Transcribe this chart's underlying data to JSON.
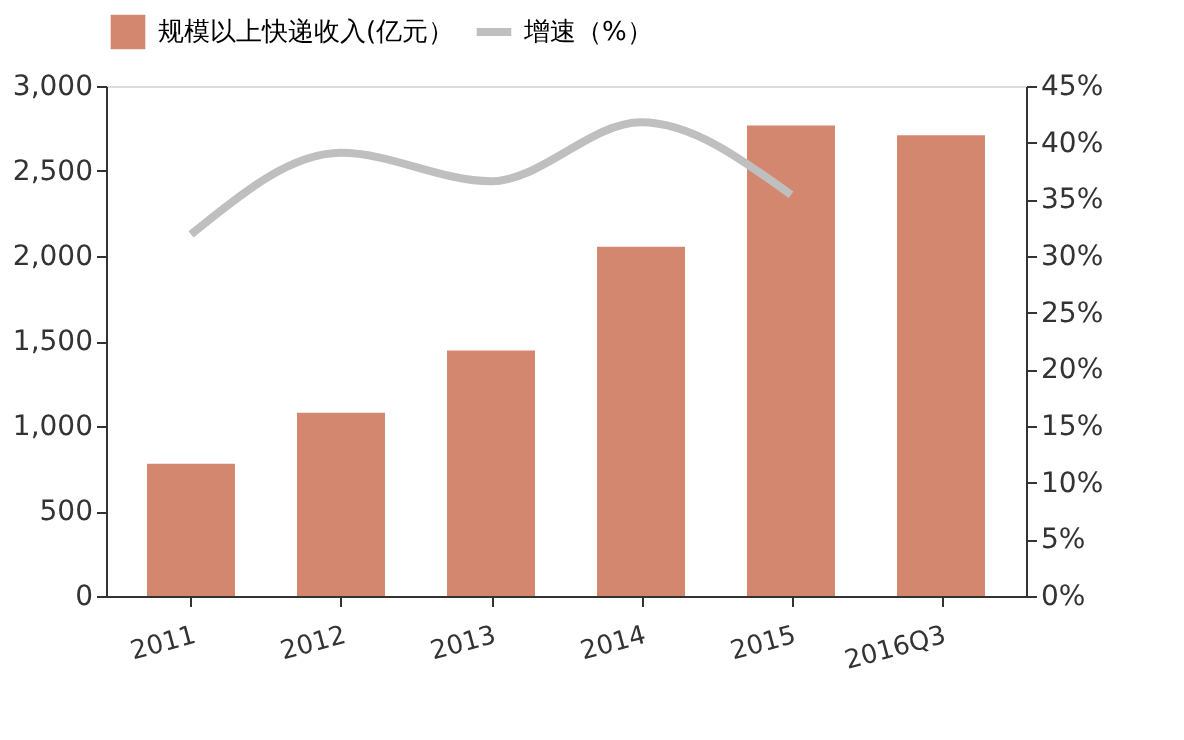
{
  "chart_data": {
    "type": "bar",
    "categories": [
      "2011",
      "2012",
      "2013",
      "2014",
      "2015",
      "2016Q3"
    ],
    "series": [
      {
        "name": "规模以上快递收入(亿元）",
        "color": "#d4876f",
        "values": [
          778,
          1078,
          1444,
          2055,
          2767,
          2711
        ]
      },
      {
        "name": "增速（%）",
        "type": "line",
        "axis": "y2",
        "color": "#bfbfbf",
        "values": [
          31.9,
          39.1,
          36.6,
          41.8,
          35.4,
          null
        ]
      }
    ],
    "ylim": [
      0,
      3000
    ],
    "yticks": [
      {
        "value": 0,
        "label": "0"
      },
      {
        "value": 500,
        "label": "500"
      },
      {
        "value": 1000,
        "label": "1,000"
      },
      {
        "value": 1500,
        "label": "1,500"
      },
      {
        "value": 2000,
        "label": "2,000"
      },
      {
        "value": 2500,
        "label": "2,500"
      },
      {
        "value": 3000,
        "label": "3,000"
      }
    ],
    "y2lim": [
      0,
      45
    ],
    "y2ticks": [
      {
        "value": 0,
        "label": "0%"
      },
      {
        "value": 5,
        "label": "5%"
      },
      {
        "value": 10,
        "label": "10%"
      },
      {
        "value": 15,
        "label": "15%"
      },
      {
        "value": 20,
        "label": "20%"
      },
      {
        "value": 25,
        "label": "25%"
      },
      {
        "value": 30,
        "label": "30%"
      },
      {
        "value": 35,
        "label": "35%"
      },
      {
        "value": 40,
        "label": "40%"
      },
      {
        "value": 45,
        "label": "45%"
      }
    ],
    "grid": false,
    "legend": "top",
    "marker": "none"
  }
}
